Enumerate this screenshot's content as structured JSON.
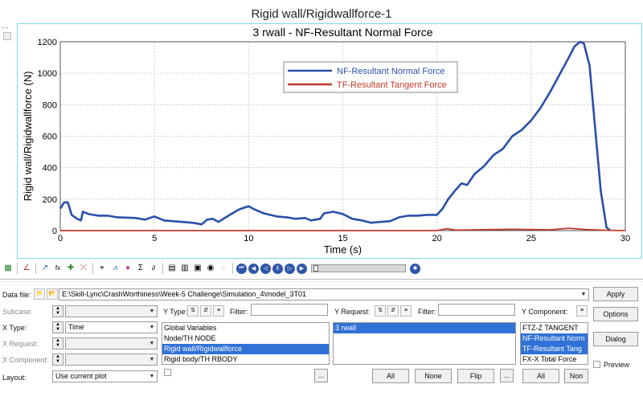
{
  "window": {
    "title": "Rigid wall/Rigidwallforce-1"
  },
  "chart_data": {
    "type": "line",
    "title": "3 rwall - NF-Resultant Normal Force",
    "xlabel": "Time (s)",
    "ylabel": "Rigid wall/Rigidwallforce (N)",
    "xlim": [
      0,
      30
    ],
    "ylim": [
      0,
      1200
    ],
    "xticks": [
      "0",
      "5",
      "10",
      "15",
      "20",
      "25",
      "30"
    ],
    "yticks": [
      "0",
      "200",
      "400",
      "600",
      "800",
      "1000",
      "1200"
    ],
    "grid": true,
    "legend_position": "top-center",
    "series": [
      {
        "name": "NF-Resultant Normal Force",
        "color": "#2b4fa8",
        "x": [
          0,
          0.2,
          0.4,
          0.6,
          0.9,
          1.1,
          1.2,
          1.5,
          2,
          2.5,
          3,
          4,
          4.5,
          5,
          5.5,
          6,
          7,
          7.5,
          7.8,
          8.1,
          8.4,
          9,
          9.5,
          10,
          10.3,
          10.8,
          11.5,
          12,
          12.5,
          13,
          13.3,
          13.8,
          14,
          14.5,
          15,
          15.5,
          16,
          16.5,
          17,
          17.5,
          18,
          18.5,
          19,
          19.5,
          20,
          20.3,
          20.6,
          21,
          21.3,
          21.6,
          22,
          22.5,
          23,
          23.5,
          24,
          24.5,
          25,
          25.5,
          26,
          26.5,
          27,
          27.3,
          27.6,
          27.8,
          28.1,
          28.4,
          28.7,
          29,
          29.2
        ],
        "y": [
          140,
          178,
          180,
          100,
          75,
          65,
          120,
          105,
          95,
          95,
          85,
          80,
          70,
          90,
          65,
          60,
          50,
          40,
          70,
          75,
          55,
          100,
          135,
          155,
          135,
          110,
          90,
          85,
          75,
          80,
          65,
          75,
          110,
          120,
          105,
          75,
          65,
          50,
          55,
          60,
          85,
          95,
          95,
          100,
          100,
          140,
          200,
          260,
          300,
          290,
          360,
          410,
          480,
          520,
          600,
          640,
          700,
          780,
          880,
          990,
          1100,
          1170,
          1200,
          1190,
          1050,
          650,
          250,
          20,
          0
        ]
      },
      {
        "name": "TF-Resultant Tangent Force",
        "color": "#c0392b",
        "x": [
          0,
          5,
          10,
          15,
          20,
          20.5,
          21,
          22,
          24,
          26,
          27,
          27.5,
          28,
          29,
          30
        ],
        "y": [
          0,
          0,
          0,
          0,
          0,
          12,
          3,
          5,
          8,
          5,
          15,
          10,
          6,
          2,
          0
        ]
      }
    ]
  },
  "toolbar": {
    "icons": [
      "layout-icon",
      "curve-style-icon",
      "math-fx-icon",
      "add-curve-icon",
      "scale-icon",
      "color-wheel-icon",
      "sigma-icon",
      "derivative-icon",
      "grid-icon",
      "table-icon",
      "notes-icon",
      "camera-icon"
    ],
    "playback": [
      "first-frame-icon",
      "rewind-icon",
      "step-back-icon",
      "pause-icon",
      "step-forward-icon",
      "fast-forward-icon"
    ]
  },
  "panel": {
    "data_file_label": "Data file:",
    "data_file_value": "E:\\Skill-Lync\\CrashWorthiness\\Week-5 Challenge\\Simulation_4\\model_3T01",
    "subcase_label": "Subcase:",
    "xtype_label": "X Type:",
    "xtype_value": "Time",
    "xrequest_label": "X Request:",
    "xcomponent_label": "X Component:",
    "layout_label": "Layout:",
    "layout_value": "Use current plot",
    "ytype_label": "Y Type:",
    "filter_label": "Filter:",
    "yrequest_label": "Y Request:",
    "ycomponent_label": "Y Component:",
    "ytype_items": [
      "Global Variables",
      "Node/TH NODE",
      "Rigid wall/Rigidwallforce",
      "Rigid body/TH RBODY"
    ],
    "ytype_selected": 2,
    "yrequest_items": [
      "3 rwall"
    ],
    "yrequest_selected": 0,
    "ycomponent_items": [
      "FTZ-Z TANGENT",
      "NF-Resultant Norm",
      "TF-Resultant Tang",
      "FX-X Total Force"
    ],
    "ycomponent_selected": [
      1,
      2
    ],
    "ellipsis": "...",
    "all_label": "All",
    "none_label": "None",
    "flip_label": "Flip",
    "non_label": "Non",
    "apply_label": "Apply",
    "options_label": "Options",
    "dialog_label": "Dialog",
    "preview_label": "Preview"
  }
}
